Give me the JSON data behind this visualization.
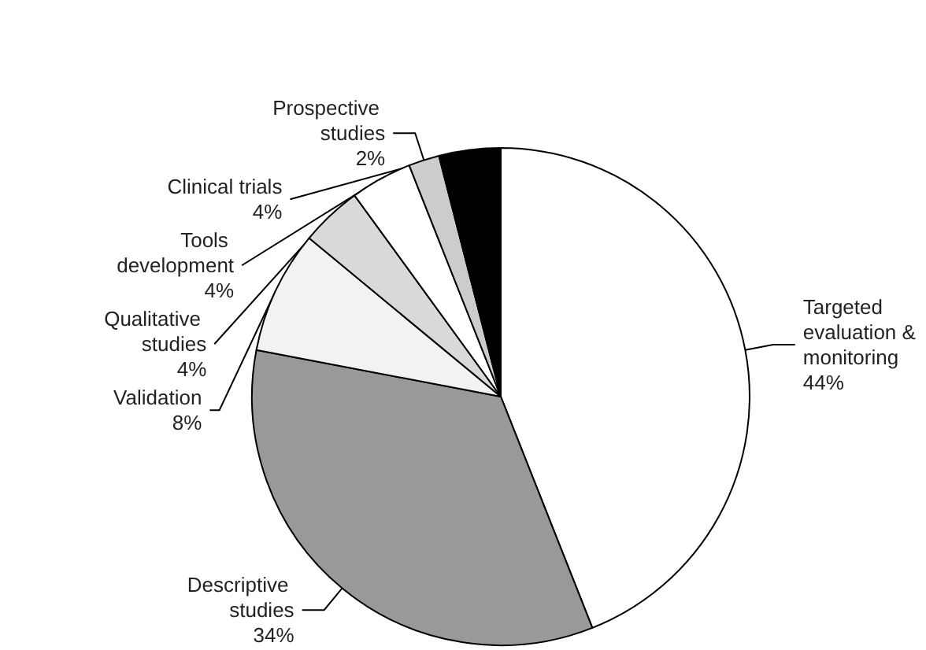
{
  "chart_data": {
    "type": "pie",
    "categories": [
      "Targeted evaluation & monitoring",
      "Descriptive studies",
      "Validation",
      "Qualitative studies",
      "Tools development",
      "Prospective studies",
      "Clinical trials"
    ],
    "values": [
      44,
      34,
      8,
      4,
      4,
      2,
      4
    ],
    "value_labels": [
      "44%",
      "34%",
      "8%",
      "4%",
      "4%",
      "2%",
      "4%"
    ],
    "colors": [
      "#ffffff",
      "#999999",
      "#f2f2f2",
      "#d9d9d9",
      "#ffffff",
      "#cccccc",
      "#000000"
    ]
  }
}
